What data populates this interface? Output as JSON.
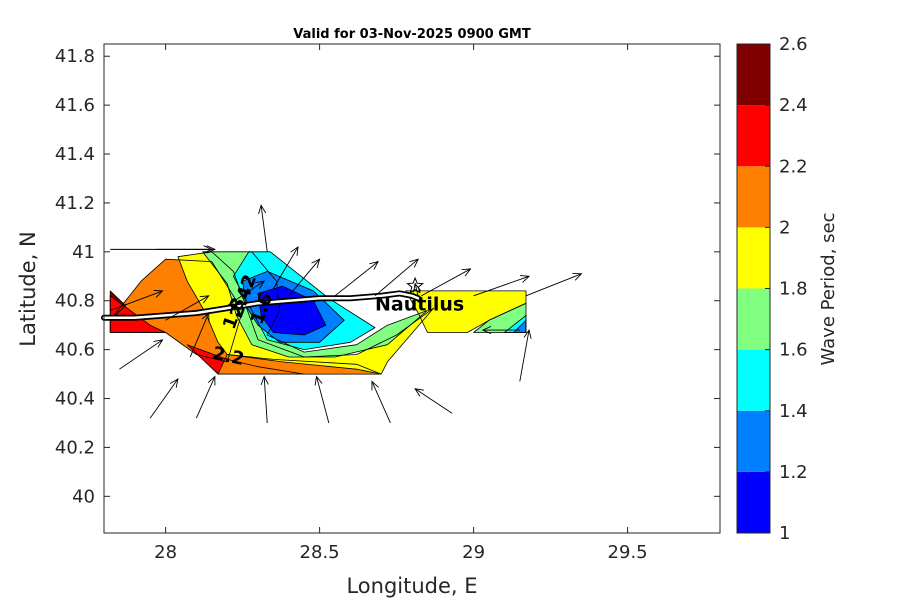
{
  "chart_data": {
    "type": "contour-map",
    "title": "Valid for 03-Nov-2025 0900 GMT",
    "xlabel": "Longitude, E",
    "ylabel": "Latitude, N",
    "xlim": [
      27.8,
      29.8
    ],
    "ylim": [
      39.85,
      41.85
    ],
    "xticks": [
      {
        "value": 28,
        "label": "28"
      },
      {
        "value": 28.5,
        "label": "28.5"
      },
      {
        "value": 29,
        "label": "29"
      },
      {
        "value": 29.5,
        "label": "29.5"
      }
    ],
    "yticks": [
      {
        "value": 40,
        "label": "40"
      },
      {
        "value": 40.2,
        "label": "40.2"
      },
      {
        "value": 40.4,
        "label": "40.4"
      },
      {
        "value": 40.6,
        "label": "40.6"
      },
      {
        "value": 40.8,
        "label": "40.8"
      },
      {
        "value": 41,
        "label": "41"
      },
      {
        "value": 41.2,
        "label": "41.2"
      },
      {
        "value": 41.4,
        "label": "41.4"
      },
      {
        "value": 41.6,
        "label": "41.6"
      },
      {
        "value": 41.8,
        "label": "41.8"
      }
    ],
    "colorbar": {
      "label": "Wave Period, sec",
      "min": 1,
      "max": 2.6,
      "ticks": [
        {
          "value": 1,
          "label": "1"
        },
        {
          "value": 1.2,
          "label": "1.2"
        },
        {
          "value": 1.4,
          "label": "1.4"
        },
        {
          "value": 1.6,
          "label": "1.6"
        },
        {
          "value": 1.8,
          "label": "1.8"
        },
        {
          "value": 2,
          "label": "2"
        },
        {
          "value": 2.2,
          "label": "2.2"
        },
        {
          "value": 2.4,
          "label": "2.4"
        },
        {
          "value": 2.6,
          "label": "2.6"
        }
      ],
      "bands": [
        {
          "from": 1.0,
          "to": 1.2,
          "color": "#0000ff"
        },
        {
          "from": 1.2,
          "to": 1.4,
          "color": "#0080ff"
        },
        {
          "from": 1.4,
          "to": 1.6,
          "color": "#00ffff"
        },
        {
          "from": 1.6,
          "to": 1.8,
          "color": "#80ff80"
        },
        {
          "from": 1.8,
          "to": 2.0,
          "color": "#ffff00"
        },
        {
          "from": 2.0,
          "to": 2.2,
          "color": "#ff8000"
        },
        {
          "from": 2.2,
          "to": 2.4,
          "color": "#ff0000"
        },
        {
          "from": 2.4,
          "to": 2.6,
          "color": "#800000"
        }
      ]
    },
    "regions": [
      {
        "level": 2.0,
        "color": "#ff8000",
        "points": [
          [
            27.82,
            40.72
          ],
          [
            27.92,
            40.88
          ],
          [
            28.0,
            40.97
          ],
          [
            28.15,
            40.96
          ],
          [
            28.25,
            40.76
          ],
          [
            28.2,
            40.55
          ],
          [
            28.1,
            40.58
          ],
          [
            28.0,
            40.67
          ],
          [
            27.82,
            40.67
          ]
        ]
      },
      {
        "level": 2.4,
        "color": "#800000",
        "points": [
          [
            27.82,
            40.84
          ],
          [
            27.87,
            40.78
          ],
          [
            27.82,
            40.72
          ]
        ]
      },
      {
        "level": 2.2,
        "color": "#ff0000",
        "points": [
          [
            27.82,
            40.82
          ],
          [
            27.95,
            40.7
          ],
          [
            28.0,
            40.67
          ],
          [
            27.82,
            40.67
          ]
        ]
      },
      {
        "level": 2.2,
        "color": "#ff0000",
        "points": [
          [
            28.07,
            40.62
          ],
          [
            28.17,
            40.5
          ],
          [
            28.45,
            40.5
          ],
          [
            28.3,
            40.53
          ],
          [
            28.2,
            40.56
          ]
        ]
      },
      {
        "level": 2.0,
        "color": "#ff8000",
        "points": [
          [
            28.17,
            40.5
          ],
          [
            28.7,
            40.5
          ],
          [
            28.62,
            40.54
          ],
          [
            28.35,
            40.56
          ],
          [
            28.2,
            40.58
          ]
        ]
      },
      {
        "level": 1.8,
        "color": "#ffff00",
        "points": [
          [
            28.04,
            40.98
          ],
          [
            28.15,
            41.0
          ],
          [
            28.22,
            40.92
          ],
          [
            28.26,
            40.78
          ],
          [
            28.3,
            40.64
          ],
          [
            28.45,
            40.57
          ],
          [
            28.62,
            40.58
          ],
          [
            28.75,
            40.66
          ],
          [
            28.87,
            40.77
          ],
          [
            28.72,
            40.55
          ],
          [
            28.7,
            40.5
          ],
          [
            28.62,
            40.52
          ],
          [
            28.38,
            40.55
          ],
          [
            28.2,
            40.58
          ],
          [
            28.17,
            40.63
          ],
          [
            28.13,
            40.75
          ],
          [
            28.07,
            40.88
          ]
        ]
      },
      {
        "level": 1.8,
        "color": "#ffff00",
        "points": [
          [
            28.78,
            40.84
          ],
          [
            29.17,
            40.84
          ],
          [
            29.17,
            40.79
          ],
          [
            29.05,
            40.72
          ],
          [
            28.98,
            40.67
          ],
          [
            28.85,
            40.67
          ],
          [
            28.82,
            40.75
          ]
        ]
      },
      {
        "level": 1.6,
        "color": "#80ff80",
        "points": [
          [
            28.12,
            41.0
          ],
          [
            28.28,
            41.0
          ],
          [
            28.36,
            40.88
          ],
          [
            28.37,
            40.76
          ],
          [
            28.33,
            40.66
          ],
          [
            28.45,
            40.59
          ],
          [
            28.62,
            40.62
          ],
          [
            28.72,
            40.7
          ],
          [
            28.85,
            40.76
          ],
          [
            28.72,
            40.62
          ],
          [
            28.55,
            40.57
          ],
          [
            28.4,
            40.57
          ],
          [
            28.28,
            40.62
          ],
          [
            28.23,
            40.74
          ],
          [
            28.2,
            40.87
          ]
        ]
      },
      {
        "level": 1.6,
        "color": "#80ff80",
        "points": [
          [
            29.0,
            40.67
          ],
          [
            29.05,
            40.72
          ],
          [
            29.17,
            40.79
          ],
          [
            29.17,
            40.67
          ]
        ]
      },
      {
        "level": 1.4,
        "color": "#00ffff",
        "points": [
          [
            28.22,
            40.9
          ],
          [
            28.27,
            41.0
          ],
          [
            28.34,
            41.0
          ],
          [
            28.42,
            40.92
          ],
          [
            28.53,
            40.81
          ],
          [
            28.68,
            40.69
          ],
          [
            28.6,
            40.63
          ],
          [
            28.45,
            40.6
          ],
          [
            28.33,
            40.64
          ],
          [
            28.28,
            40.76
          ]
        ]
      },
      {
        "level": 1.4,
        "color": "#00ffff",
        "points": [
          [
            29.1,
            40.67
          ],
          [
            29.17,
            40.74
          ],
          [
            29.17,
            40.67
          ]
        ]
      },
      {
        "level": 1.2,
        "color": "#0080ff",
        "points": [
          [
            28.25,
            40.88
          ],
          [
            28.33,
            40.92
          ],
          [
            28.48,
            40.84
          ],
          [
            28.58,
            40.72
          ],
          [
            28.5,
            40.63
          ],
          [
            28.37,
            40.63
          ],
          [
            28.3,
            40.7
          ],
          [
            28.26,
            40.78
          ]
        ]
      },
      {
        "level": 1.2,
        "color": "#0080ff",
        "points": [
          [
            29.13,
            40.67
          ],
          [
            29.17,
            40.72
          ],
          [
            29.17,
            40.67
          ]
        ]
      },
      {
        "level": 1.0,
        "color": "#0000ff",
        "points": [
          [
            28.3,
            40.83
          ],
          [
            28.38,
            40.86
          ],
          [
            28.48,
            40.8
          ],
          [
            28.52,
            40.7
          ],
          [
            28.45,
            40.66
          ],
          [
            28.35,
            40.67
          ],
          [
            28.31,
            40.74
          ]
        ]
      }
    ],
    "contour_labels": [
      {
        "text": "2.2",
        "lon": 28.2,
        "lat": 40.55,
        "angle": 12
      },
      {
        "text": "2.42",
        "lon": 28.27,
        "lat": 40.81,
        "angle": -70
      },
      {
        "text": "1.8",
        "lon": 28.24,
        "lat": 40.74,
        "angle": -70
      },
      {
        "text": "1.6",
        "lon": 28.33,
        "lat": 40.76,
        "angle": -70
      }
    ],
    "coastline": [
      [
        27.8,
        40.73
      ],
      [
        27.9,
        40.73
      ],
      [
        28.0,
        40.74
      ],
      [
        28.1,
        40.75
      ],
      [
        28.2,
        40.77
      ],
      [
        28.3,
        40.79
      ],
      [
        28.4,
        40.8
      ],
      [
        28.5,
        40.81
      ],
      [
        28.6,
        40.81
      ],
      [
        28.7,
        40.82
      ],
      [
        28.76,
        40.83
      ],
      [
        28.8,
        40.82
      ],
      [
        28.82,
        40.81
      ]
    ],
    "vectors": [
      {
        "lon": 27.82,
        "lat": 41.01,
        "dlon": 0.33,
        "dlat": 0.0
      },
      {
        "lon": 27.97,
        "lat": 41.01,
        "dlon": 0.19,
        "dlat": 0.0
      },
      {
        "lon": 27.82,
        "lat": 40.76,
        "dlon": 0.17,
        "dlat": 0.08
      },
      {
        "lon": 28.0,
        "lat": 40.72,
        "dlon": 0.14,
        "dlat": 0.1
      },
      {
        "lon": 28.2,
        "lat": 40.78,
        "dlon": 0.12,
        "dlat": 0.1
      },
      {
        "lon": 28.35,
        "lat": 40.85,
        "dlon": 0.08,
        "dlat": 0.17
      },
      {
        "lon": 28.33,
        "lat": 41.0,
        "dlon": -0.02,
        "dlat": 0.19
      },
      {
        "lon": 28.4,
        "lat": 40.82,
        "dlon": 0.1,
        "dlat": 0.15
      },
      {
        "lon": 28.55,
        "lat": 40.82,
        "dlon": 0.14,
        "dlat": 0.14
      },
      {
        "lon": 28.68,
        "lat": 40.82,
        "dlon": 0.14,
        "dlat": 0.15
      },
      {
        "lon": 28.83,
        "lat": 40.82,
        "dlon": 0.16,
        "dlat": 0.11
      },
      {
        "lon": 29.0,
        "lat": 40.82,
        "dlon": 0.18,
        "dlat": 0.08
      },
      {
        "lon": 29.17,
        "lat": 40.82,
        "dlon": 0.18,
        "dlat": 0.09
      },
      {
        "lon": 28.82,
        "lat": 40.82,
        "dlon": -0.01,
        "dlat": 0.05
      },
      {
        "lon": 27.85,
        "lat": 40.52,
        "dlon": 0.14,
        "dlat": 0.12
      },
      {
        "lon": 27.95,
        "lat": 40.32,
        "dlon": 0.09,
        "dlat": 0.16
      },
      {
        "lon": 28.08,
        "lat": 40.57,
        "dlon": 0.06,
        "dlat": 0.18
      },
      {
        "lon": 28.1,
        "lat": 40.32,
        "dlon": 0.06,
        "dlat": 0.17
      },
      {
        "lon": 28.33,
        "lat": 40.3,
        "dlon": -0.01,
        "dlat": 0.19
      },
      {
        "lon": 28.53,
        "lat": 40.3,
        "dlon": -0.04,
        "dlat": 0.19
      },
      {
        "lon": 28.73,
        "lat": 40.3,
        "dlon": -0.06,
        "dlat": 0.17
      },
      {
        "lon": 28.93,
        "lat": 40.34,
        "dlon": -0.12,
        "dlat": 0.1
      },
      {
        "lon": 29.15,
        "lat": 40.47,
        "dlon": 0.03,
        "dlat": 0.21
      },
      {
        "lon": 29.15,
        "lat": 40.68,
        "dlon": -0.12,
        "dlat": 0.0
      }
    ],
    "site": {
      "name": "Nautilus",
      "lon": 28.68,
      "lat": 40.76,
      "marker_lon": 28.81,
      "marker_lat": 40.86
    }
  }
}
